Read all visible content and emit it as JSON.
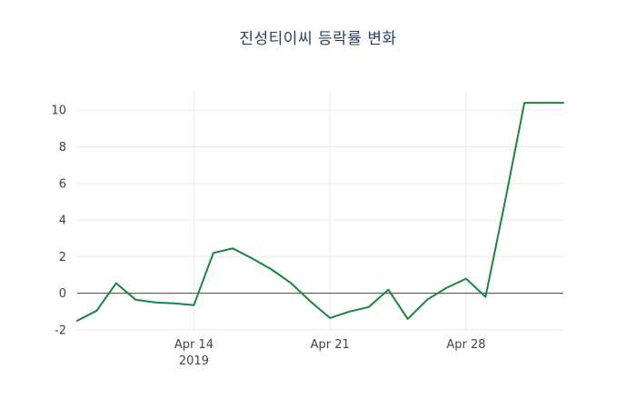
{
  "chart_data": {
    "type": "line",
    "title": "진성티이씨 등락률 변화",
    "xlabel": "",
    "ylabel": "",
    "x": [
      "2019-04-08",
      "2019-04-09",
      "2019-04-10",
      "2019-04-11",
      "2019-04-12",
      "2019-04-13",
      "2019-04-14",
      "2019-04-15",
      "2019-04-16",
      "2019-04-17",
      "2019-04-18",
      "2019-04-19",
      "2019-04-20",
      "2019-04-21",
      "2019-04-22",
      "2019-04-23",
      "2019-04-24",
      "2019-04-25",
      "2019-04-26",
      "2019-04-27",
      "2019-04-28",
      "2019-04-29",
      "2019-04-30",
      "2019-05-01",
      "2019-05-02",
      "2019-05-03"
    ],
    "series": [
      {
        "name": "등락률",
        "values": [
          -1.5,
          -0.95,
          0.55,
          -0.35,
          -0.5,
          -0.55,
          -0.65,
          2.2,
          2.45,
          1.9,
          1.3,
          0.55,
          -0.45,
          -1.35,
          -1.0,
          -0.75,
          0.2,
          -1.4,
          -0.35,
          0.3,
          0.8,
          -0.2,
          5.0,
          10.4,
          10.4,
          10.4
        ]
      }
    ],
    "y_ticks": [
      -2,
      0,
      2,
      4,
      6,
      8,
      10
    ],
    "x_ticks": [
      {
        "date": "2019-04-14",
        "label": "Apr 14",
        "sublabel": "2019"
      },
      {
        "date": "2019-04-21",
        "label": "Apr 21",
        "sublabel": ""
      },
      {
        "date": "2019-04-28",
        "label": "Apr 28",
        "sublabel": ""
      }
    ],
    "x_range": [
      "2019-04-08",
      "2019-05-03"
    ],
    "ylim": [
      -2.1,
      11.05
    ],
    "grid": true,
    "zero_line": true,
    "legend": "none",
    "colors": {
      "line": "#17863d",
      "grid": "#ebebeb",
      "zero_line": "#444444",
      "tick_text": "#444444",
      "title_text": "#2a3f5f",
      "background": "#ffffff"
    }
  }
}
